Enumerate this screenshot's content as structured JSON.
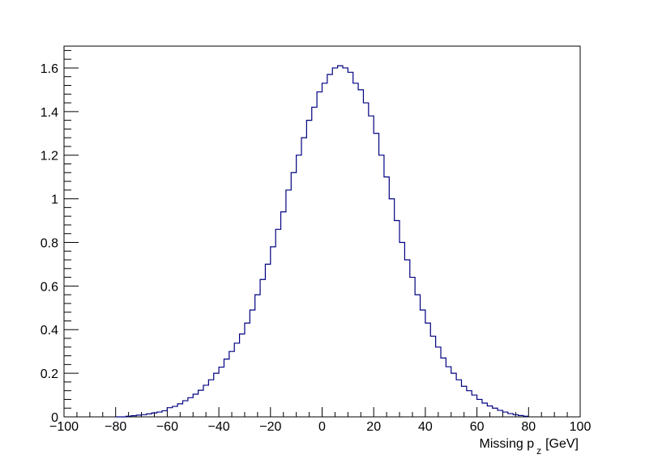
{
  "chart_data": {
    "type": "histogram",
    "title": "",
    "xlabel": "Missing p",
    "xlabel_subscript": "z",
    "xlabel_unit": "[GeV]",
    "ylabel": "",
    "xlim": [
      -100,
      100
    ],
    "ylim": [
      0,
      1.7
    ],
    "grid": false,
    "legend": "none",
    "line_color": "#000080",
    "bin_width": 2,
    "x_ticks": [
      -100,
      -80,
      -60,
      -40,
      -20,
      0,
      20,
      40,
      60,
      80,
      100
    ],
    "x_tick_labels": [
      "−100",
      "−80",
      "−60",
      "−40",
      "−20",
      "0",
      "20",
      "40",
      "60",
      "80",
      "100"
    ],
    "y_ticks": [
      0,
      0.2,
      0.4,
      0.6,
      0.8,
      1,
      1.2,
      1.4,
      1.6
    ],
    "y_tick_labels": [
      "0",
      "0.2",
      "0.4",
      "0.6",
      "0.8",
      "1",
      "1.2",
      "1.4",
      "1.6"
    ],
    "x": [
      -80,
      -78,
      -76,
      -74,
      -72,
      -70,
      -68,
      -66,
      -64,
      -62,
      -60,
      -58,
      -56,
      -54,
      -52,
      -50,
      -48,
      -46,
      -44,
      -42,
      -40,
      -38,
      -36,
      -34,
      -32,
      -30,
      -28,
      -26,
      -24,
      -22,
      -20,
      -18,
      -16,
      -14,
      -12,
      -10,
      -8,
      -6,
      -4,
      -2,
      0,
      2,
      4,
      6,
      8,
      10,
      12,
      14,
      16,
      18,
      20,
      22,
      24,
      26,
      28,
      30,
      32,
      34,
      36,
      38,
      40,
      42,
      44,
      46,
      48,
      50,
      52,
      54,
      56,
      58,
      60,
      62,
      64,
      66,
      68,
      70,
      72,
      74,
      76,
      78
    ],
    "values": [
      0.0,
      0.0,
      0.003,
      0.005,
      0.008,
      0.01,
      0.014,
      0.018,
      0.022,
      0.028,
      0.042,
      0.048,
      0.06,
      0.074,
      0.088,
      0.104,
      0.122,
      0.145,
      0.17,
      0.2,
      0.228,
      0.265,
      0.3,
      0.338,
      0.38,
      0.43,
      0.49,
      0.56,
      0.63,
      0.7,
      0.78,
      0.86,
      0.94,
      1.04,
      1.12,
      1.2,
      1.28,
      1.36,
      1.42,
      1.49,
      1.53,
      1.57,
      1.6,
      1.61,
      1.6,
      1.58,
      1.53,
      1.5,
      1.44,
      1.38,
      1.3,
      1.2,
      1.1,
      1.0,
      0.9,
      0.8,
      0.72,
      0.64,
      0.56,
      0.49,
      0.43,
      0.37,
      0.32,
      0.27,
      0.23,
      0.2,
      0.17,
      0.14,
      0.12,
      0.1,
      0.08,
      0.063,
      0.05,
      0.04,
      0.03,
      0.022,
      0.015,
      0.01,
      0.006,
      0.003
    ]
  }
}
